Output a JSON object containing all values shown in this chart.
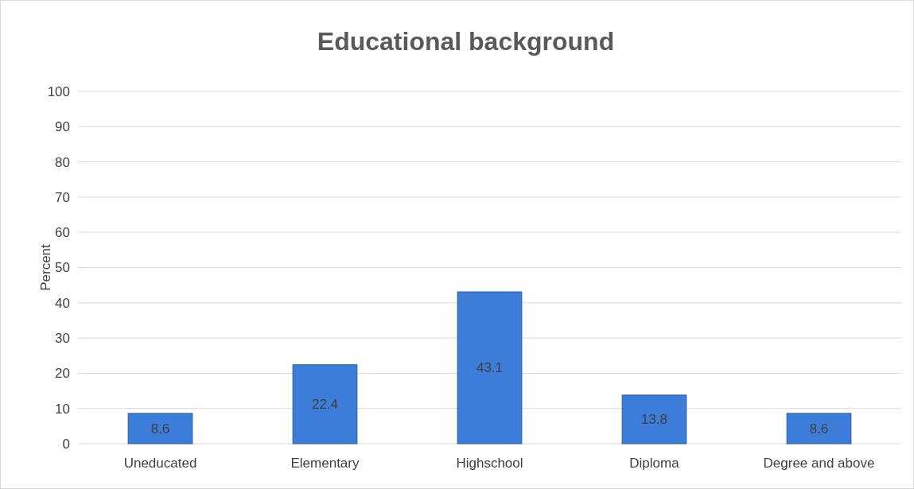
{
  "chart_data": {
    "type": "bar",
    "title": "Educational background",
    "ylabel": "Percent",
    "categories": [
      "Uneducated",
      "Elementary",
      "Highschool",
      "Diploma",
      "Degree and above"
    ],
    "values": [
      8.6,
      22.4,
      43.1,
      13.8,
      8.6
    ],
    "color": "#3b7dd8",
    "ylim": [
      0,
      100
    ],
    "yticks": [
      0,
      10,
      20,
      30,
      40,
      50,
      60,
      70,
      80,
      90,
      100
    ],
    "grid": "y",
    "data_labels": true
  }
}
